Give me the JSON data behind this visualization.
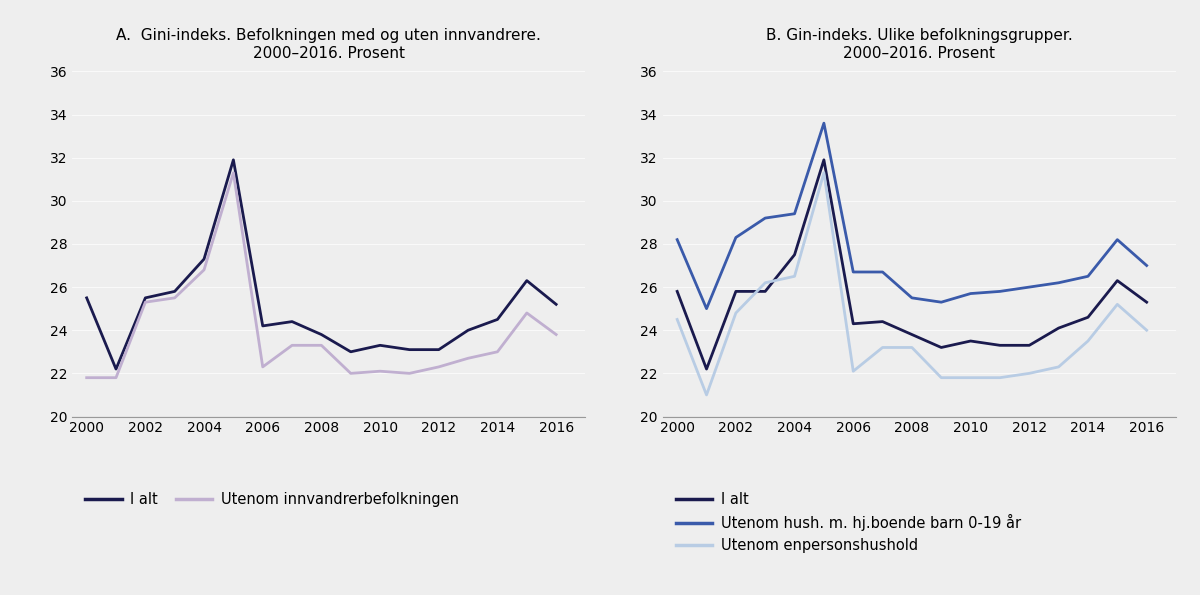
{
  "years": [
    2000,
    2001,
    2002,
    2003,
    2004,
    2005,
    2006,
    2007,
    2008,
    2009,
    2010,
    2011,
    2012,
    2013,
    2014,
    2015,
    2016
  ],
  "panel_A": {
    "title": "A.  Gini-indeks. Befolkningen med og uten innvandrere.\n2000–2016. Prosent",
    "i_alt": [
      25.5,
      22.2,
      25.5,
      25.8,
      27.3,
      31.9,
      24.2,
      24.4,
      23.8,
      23.0,
      23.3,
      23.1,
      23.1,
      24.0,
      24.5,
      26.3,
      25.2
    ],
    "utenom_innv": [
      21.8,
      21.8,
      25.3,
      25.5,
      26.8,
      31.3,
      22.3,
      23.3,
      23.3,
      22.0,
      22.1,
      22.0,
      22.3,
      22.7,
      23.0,
      24.8,
      23.8
    ],
    "legend": [
      "I alt",
      "Utenom innvandrerbefolkningen"
    ],
    "colors": [
      "#1a1a4e",
      "#c0afd0"
    ],
    "ylim": [
      20,
      36
    ],
    "yticks": [
      20,
      22,
      24,
      26,
      28,
      30,
      32,
      34,
      36
    ]
  },
  "panel_B": {
    "title": "B. Gin-indeks. Ulike befolkningsgrupper.\n2000–2016. Prosent",
    "i_alt": [
      25.8,
      22.2,
      25.8,
      25.8,
      27.5,
      31.9,
      24.3,
      24.4,
      23.8,
      23.2,
      23.5,
      23.3,
      23.3,
      24.1,
      24.6,
      26.3,
      25.3
    ],
    "utenom_barn": [
      28.2,
      25.0,
      28.3,
      29.2,
      29.4,
      33.6,
      26.7,
      26.7,
      25.5,
      25.3,
      25.7,
      25.8,
      26.0,
      26.2,
      26.5,
      28.2,
      27.0
    ],
    "utenom_enpers": [
      24.5,
      21.0,
      24.8,
      26.2,
      26.5,
      31.3,
      22.1,
      23.2,
      23.2,
      21.8,
      21.8,
      21.8,
      22.0,
      22.3,
      23.5,
      25.2,
      24.0
    ],
    "legend": [
      "I alt",
      "Utenom hush. m. hj.boende barn 0-19 år",
      "Utenom enpersonshushold"
    ],
    "colors": [
      "#1a1a4e",
      "#3a5aaa",
      "#b8cce4"
    ],
    "ylim": [
      20,
      36
    ],
    "yticks": [
      20,
      22,
      24,
      26,
      28,
      30,
      32,
      34,
      36
    ]
  },
  "background_color": "#eeeeee",
  "plot_bg_color": "#eeeeee",
  "xticks": [
    2000,
    2002,
    2004,
    2006,
    2008,
    2010,
    2012,
    2014,
    2016
  ]
}
